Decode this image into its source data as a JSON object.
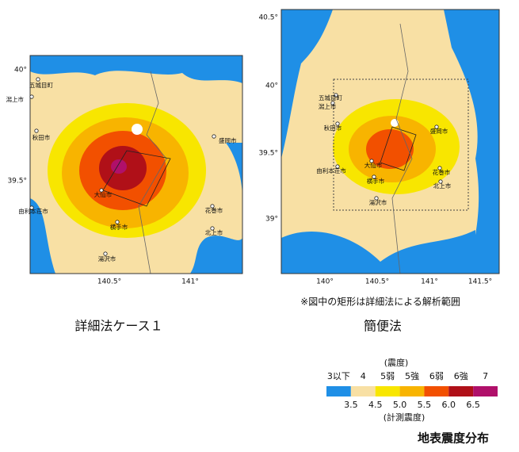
{
  "left_map": {
    "caption": "詳細法ケース１",
    "lat_labels": [
      "40°",
      "39.5°"
    ],
    "lon_labels": [
      "140.5°",
      "141°"
    ],
    "cities": [
      "五城目町",
      "潟上市",
      "秋田市",
      "盛岡市",
      "由利本荘市",
      "大仙市",
      "花巻市",
      "北上市",
      "横手市",
      "湯沢市"
    ]
  },
  "right_map": {
    "caption": "簡便法",
    "note": "※図中の矩形は詳細法による解析範囲",
    "lat_labels": [
      "40.5°",
      "40°",
      "39.5°",
      "39°"
    ],
    "lon_labels": [
      "140°",
      "140.5°",
      "141°",
      "141.5°"
    ],
    "cities": [
      "五城目町",
      "潟上市",
      "秋田市",
      "盛岡市",
      "由利本荘市",
      "大仙市",
      "花巻市",
      "北上市",
      "横手市",
      "湯沢市"
    ]
  },
  "legend": {
    "title": "(震度)",
    "classes": [
      "3以下",
      "4",
      "5弱",
      "5強",
      "6弱",
      "6強",
      "7"
    ],
    "colors": [
      "#1f8fe6",
      "#f8e0a4",
      "#f8e600",
      "#f8b400",
      "#f25000",
      "#b01018",
      "#b0106a"
    ],
    "breaks": [
      "3.5",
      "4.5",
      "5.0",
      "5.5",
      "6.0",
      "6.5"
    ],
    "subtitle": "(計測震度)"
  },
  "footer_title": "地表震度分布"
}
